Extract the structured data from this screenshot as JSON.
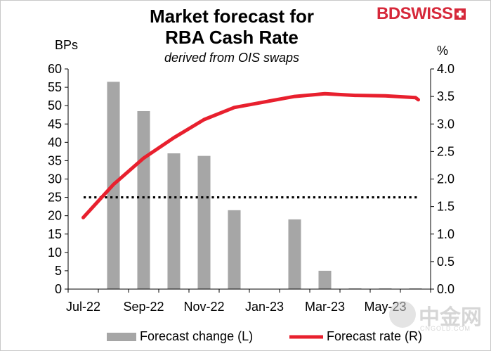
{
  "header": {
    "title_line1": "Market forecast for",
    "title_line2": "RBA Cash Rate",
    "subtitle": "derived from OIS swaps",
    "unit_left": "BPs",
    "unit_right": "%",
    "brand": "BDSWISS"
  },
  "watermark": {
    "main": "中金网",
    "sub": "CNGOLD.COM"
  },
  "colors": {
    "bars": "#a6a6a6",
    "line": "#e8202e",
    "reference": "#000000"
  },
  "chart_data": {
    "type": "bar+line",
    "x_ticks": [
      "Jul-22",
      "Sep-22",
      "Nov-22",
      "Jan-23",
      "Mar-23",
      "May-23"
    ],
    "y_left_ticks": [
      "0",
      "5",
      "10",
      "15",
      "20",
      "25",
      "30",
      "35",
      "40",
      "45",
      "50",
      "55",
      "60"
    ],
    "y_right_ticks": [
      "0.0",
      "0.5",
      "1.0",
      "1.5",
      "2.0",
      "2.5",
      "3.0",
      "3.5",
      "4.0"
    ],
    "ylim_left": [
      0,
      60
    ],
    "ylim_right": [
      0,
      4
    ],
    "reference_line_bps": 25,
    "legend_position": "bottom",
    "series": [
      {
        "name": "Forecast change (L)",
        "kind": "bar",
        "axis": "left",
        "categories": [
          "Aug-22",
          "Sep-22",
          "Oct-22",
          "Nov-22",
          "Dec-22",
          "Feb-23",
          "Mar-23",
          "Apr-23",
          "May-23",
          "Jun-23"
        ],
        "values": [
          56.5,
          48.5,
          37,
          36.3,
          21.5,
          19,
          5,
          0.2,
          0.2,
          0.2
        ]
      },
      {
        "name": "Forecast rate (R)",
        "kind": "line",
        "axis": "right",
        "points": [
          [
            "Jul-22",
            1.3
          ],
          [
            "Aug-22",
            1.9
          ],
          [
            "Sep-22",
            2.38
          ],
          [
            "Oct-22",
            2.75
          ],
          [
            "Nov-22",
            3.08
          ],
          [
            "Dec-22",
            3.3
          ],
          [
            "Jan-23",
            3.4
          ],
          [
            "Feb-23",
            3.5
          ],
          [
            "Mar-23",
            3.55
          ],
          [
            "Apr-23",
            3.52
          ],
          [
            "May-23",
            3.51
          ],
          [
            "Jun-23",
            3.48
          ],
          [
            "Jun-23",
            3.44
          ]
        ]
      }
    ]
  }
}
